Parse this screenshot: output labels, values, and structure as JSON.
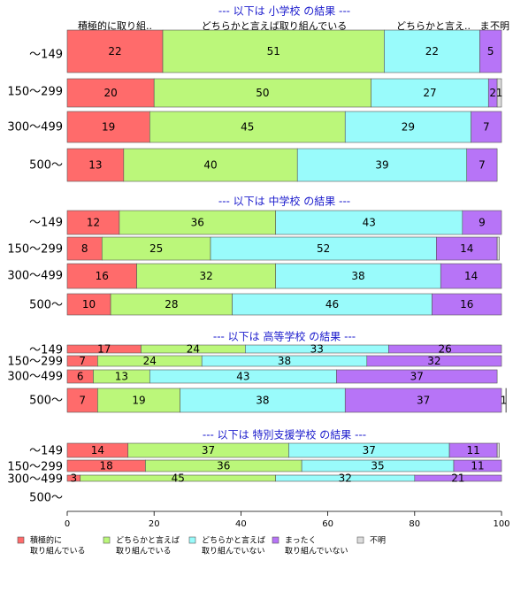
{
  "chart_data": {
    "type": "bar",
    "orientation": "horizontal",
    "stacked": true,
    "xlim": [
      0,
      100
    ],
    "xticks": [
      0,
      20,
      40,
      60,
      80,
      100
    ],
    "grid": false,
    "legend_position": "bottom-left",
    "column_headers": [
      "積極的に取り組..",
      "どちらかと言えば取り組んでいる",
      "どちらかと言え..",
      "ま",
      "不明"
    ],
    "legend": [
      {
        "label": "積極的に\n取り組んでいる",
        "color": "#ff6b6b"
      },
      {
        "label": "どちらかと言えば\n取り組んでいる",
        "color": "#bbf77a"
      },
      {
        "label": "どちらかと言えば\n取り組んでいない",
        "color": "#99fbfb"
      },
      {
        "label": "まったく\n取り組んでいない",
        "color": "#b774f7"
      },
      {
        "label": "不明",
        "color": "#dcdcdc"
      }
    ],
    "panels": [
      {
        "title": "--- 以下は 小学校 の結果 ---",
        "rows": [
          {
            "label": "～149",
            "values": [
              22,
              51,
              22,
              5,
              0
            ],
            "labels": [
              "22",
              "51",
              "22",
              "5",
              ""
            ]
          },
          {
            "label": "150～299",
            "values": [
              20,
              50,
              27,
              2,
              1
            ],
            "labels": [
              "20",
              "50",
              "27",
              "2",
              "1"
            ]
          },
          {
            "label": "300～499",
            "values": [
              19,
              45,
              29,
              7,
              0
            ],
            "labels": [
              "19",
              "45",
              "29",
              "7",
              ""
            ]
          },
          {
            "label": "500～",
            "values": [
              13,
              40,
              39,
              7,
              0
            ],
            "labels": [
              "13",
              "40",
              "39",
              "7",
              ""
            ]
          }
        ]
      },
      {
        "title": "--- 以下は 中学校 の結果 ---",
        "rows": [
          {
            "label": "～149",
            "values": [
              12,
              36,
              43,
              9,
              0
            ],
            "labels": [
              "12",
              "36",
              "43",
              "9",
              ""
            ]
          },
          {
            "label": "150～299",
            "values": [
              8,
              25,
              52,
              14,
              0.5
            ],
            "labels": [
              "8",
              "25",
              "52",
              "14",
              ""
            ]
          },
          {
            "label": "300～499",
            "values": [
              16,
              32,
              38,
              14,
              0
            ],
            "labels": [
              "16",
              "32",
              "38",
              "14",
              ""
            ]
          },
          {
            "label": "500～",
            "values": [
              10,
              28,
              46,
              16,
              0
            ],
            "labels": [
              "10",
              "28",
              "46",
              "16",
              ""
            ]
          }
        ]
      },
      {
        "title": "--- 以下は 高等学校 の結果 ---",
        "rows": [
          {
            "label": "～149",
            "values": [
              17,
              24,
              33,
              26,
              0
            ],
            "labels": [
              "17",
              "24",
              "33",
              "26",
              ""
            ]
          },
          {
            "label": "150～299",
            "values": [
              7,
              24,
              38,
              32,
              0
            ],
            "labels": [
              "7",
              "24",
              "38",
              "32",
              ""
            ]
          },
          {
            "label": "300～499",
            "values": [
              6,
              13,
              43,
              37,
              0
            ],
            "labels": [
              "6",
              "13",
              "43",
              "37",
              ""
            ]
          },
          {
            "label": "500～",
            "values": [
              7,
              19,
              38,
              37,
              1
            ],
            "labels": [
              "7",
              "19",
              "38",
              "37",
              "1"
            ]
          }
        ]
      },
      {
        "title": "--- 以下は 特別支援学校 の結果 ---",
        "rows": [
          {
            "label": "～149",
            "values": [
              14,
              37,
              37,
              11,
              0.5
            ],
            "labels": [
              "14",
              "37",
              "37",
              "11",
              ""
            ]
          },
          {
            "label": "150～299",
            "values": [
              18,
              36,
              35,
              11,
              0
            ],
            "labels": [
              "18",
              "36",
              "35",
              "11",
              ""
            ]
          },
          {
            "label": "300～499",
            "values": [
              3,
              45,
              32,
              21,
              0
            ],
            "labels": [
              "3",
              "45",
              "32",
              "21",
              ""
            ]
          },
          {
            "label": "500～",
            "values": [],
            "labels": []
          }
        ]
      }
    ]
  }
}
